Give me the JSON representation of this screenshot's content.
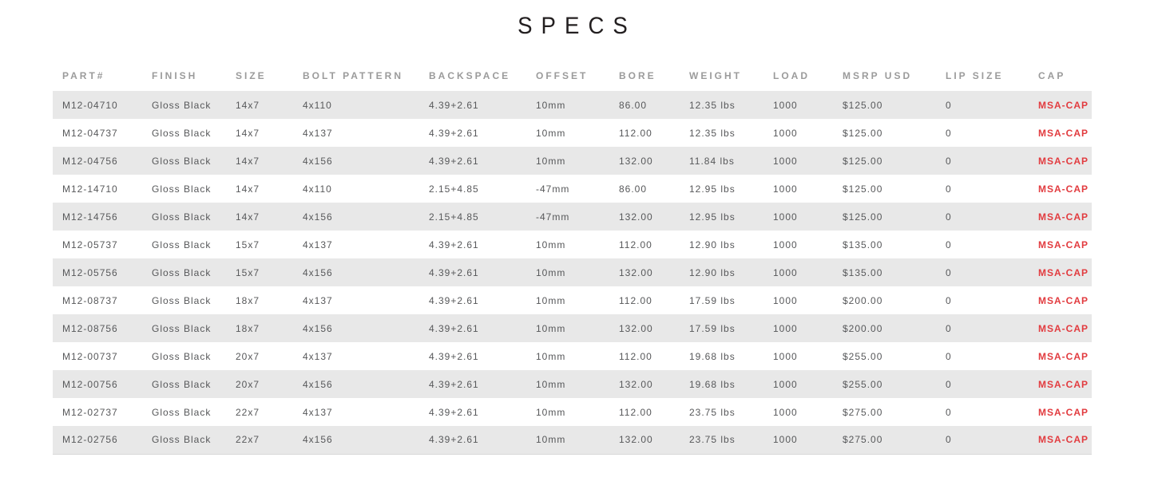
{
  "page": {
    "title": "SPECS"
  },
  "colors": {
    "accent_red": "#e23b3f",
    "stripe": "#e8e8e8",
    "header_text": "#9b9b9b",
    "body_text": "#57585a",
    "title_text": "#231f20"
  },
  "table": {
    "columns": [
      {
        "key": "part",
        "label": "PART#"
      },
      {
        "key": "finish",
        "label": "FINISH"
      },
      {
        "key": "size",
        "label": "SIZE"
      },
      {
        "key": "bolt_pattern",
        "label": "BOLT PATTERN"
      },
      {
        "key": "backspace",
        "label": "BACKSPACE"
      },
      {
        "key": "offset",
        "label": "OFFSET"
      },
      {
        "key": "bore",
        "label": "BORE"
      },
      {
        "key": "weight",
        "label": "WEIGHT"
      },
      {
        "key": "load",
        "label": "LOAD"
      },
      {
        "key": "msrp",
        "label": "MSRP USD"
      },
      {
        "key": "lip_size",
        "label": "LIP SIZE"
      },
      {
        "key": "cap",
        "label": "CAP"
      }
    ],
    "rows": [
      [
        "M12-04710",
        "Gloss Black",
        "14x7",
        "4x110",
        "4.39+2.61",
        "10mm",
        "86.00",
        "12.35 lbs",
        "1000",
        "$125.00",
        "0",
        "MSA-CAP"
      ],
      [
        "M12-04737",
        "Gloss Black",
        "14x7",
        "4x137",
        "4.39+2.61",
        "10mm",
        "112.00",
        "12.35 lbs",
        "1000",
        "$125.00",
        "0",
        "MSA-CAP"
      ],
      [
        "M12-04756",
        "Gloss Black",
        "14x7",
        "4x156",
        "4.39+2.61",
        "10mm",
        "132.00",
        "11.84 lbs",
        "1000",
        "$125.00",
        "0",
        "MSA-CAP"
      ],
      [
        "M12-14710",
        "Gloss Black",
        "14x7",
        "4x110",
        "2.15+4.85",
        "-47mm",
        "86.00",
        "12.95 lbs",
        "1000",
        "$125.00",
        "0",
        "MSA-CAP"
      ],
      [
        "M12-14756",
        "Gloss Black",
        "14x7",
        "4x156",
        "2.15+4.85",
        "-47mm",
        "132.00",
        "12.95 lbs",
        "1000",
        "$125.00",
        "0",
        "MSA-CAP"
      ],
      [
        "M12-05737",
        "Gloss Black",
        "15x7",
        "4x137",
        "4.39+2.61",
        "10mm",
        "112.00",
        "12.90 lbs",
        "1000",
        "$135.00",
        "0",
        "MSA-CAP"
      ],
      [
        "M12-05756",
        "Gloss Black",
        "15x7",
        "4x156",
        "4.39+2.61",
        "10mm",
        "132.00",
        "12.90 lbs",
        "1000",
        "$135.00",
        "0",
        "MSA-CAP"
      ],
      [
        "M12-08737",
        "Gloss Black",
        "18x7",
        "4x137",
        "4.39+2.61",
        "10mm",
        "112.00",
        "17.59 lbs",
        "1000",
        "$200.00",
        "0",
        "MSA-CAP"
      ],
      [
        "M12-08756",
        "Gloss Black",
        "18x7",
        "4x156",
        "4.39+2.61",
        "10mm",
        "132.00",
        "17.59 lbs",
        "1000",
        "$200.00",
        "0",
        "MSA-CAP"
      ],
      [
        "M12-00737",
        "Gloss Black",
        "20x7",
        "4x137",
        "4.39+2.61",
        "10mm",
        "112.00",
        "19.68 lbs",
        "1000",
        "$255.00",
        "0",
        "MSA-CAP"
      ],
      [
        "M12-00756",
        "Gloss Black",
        "20x7",
        "4x156",
        "4.39+2.61",
        "10mm",
        "132.00",
        "19.68 lbs",
        "1000",
        "$255.00",
        "0",
        "MSA-CAP"
      ],
      [
        "M12-02737",
        "Gloss Black",
        "22x7",
        "4x137",
        "4.39+2.61",
        "10mm",
        "112.00",
        "23.75 lbs",
        "1000",
        "$275.00",
        "0",
        "MSA-CAP"
      ],
      [
        "M12-02756",
        "Gloss Black",
        "22x7",
        "4x156",
        "4.39+2.61",
        "10mm",
        "132.00",
        "23.75 lbs",
        "1000",
        "$275.00",
        "0",
        "MSA-CAP"
      ]
    ]
  }
}
